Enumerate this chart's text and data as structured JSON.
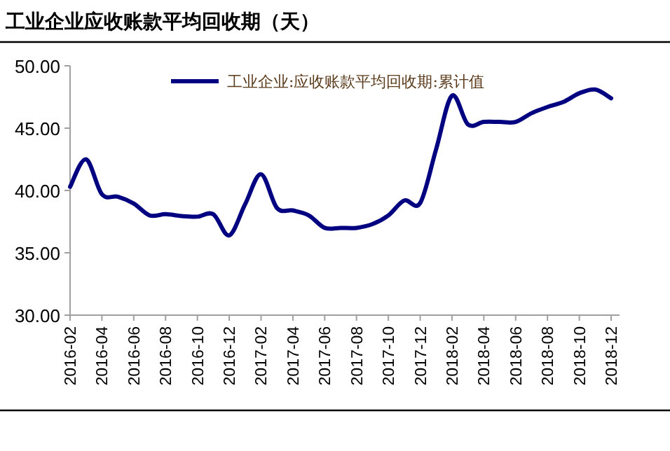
{
  "chart_data": {
    "type": "line",
    "title": "工业企业应收账款平均回收期（天）",
    "categories": [
      "2016-02",
      null,
      "2016-04",
      null,
      "2016-06",
      null,
      "2016-08",
      null,
      "2016-10",
      null,
      "2016-12",
      null,
      "2017-02",
      null,
      "2017-04",
      null,
      "2017-06",
      null,
      "2017-08",
      null,
      "2017-10",
      null,
      "2017-12",
      null,
      "2018-02",
      null,
      "2018-04",
      null,
      "2018-06",
      null,
      "2018-08",
      null,
      "2018-10",
      null,
      "2018-12"
    ],
    "series": [
      {
        "name": "工业企业:应收账款平均回收期:累计值",
        "color": "#000080",
        "values": [
          40.3,
          42.5,
          39.7,
          39.5,
          38.95,
          38.0,
          38.1,
          37.95,
          37.9,
          38.1,
          36.4,
          38.9,
          41.3,
          38.6,
          38.4,
          38.0,
          37.0,
          37.0,
          37.0,
          37.3,
          38.0,
          39.2,
          39.0,
          43.3,
          47.6,
          45.3,
          45.5,
          45.5,
          45.5,
          46.2,
          46.7,
          47.1,
          47.8,
          48.1,
          47.4
        ]
      }
    ],
    "ylim": [
      30,
      50
    ],
    "yticks": [
      {
        "value": 30,
        "label": "30.00"
      },
      {
        "value": 35,
        "label": "35.00"
      },
      {
        "value": 40,
        "label": "40.00"
      },
      {
        "value": 45,
        "label": "45.00"
      },
      {
        "value": 50,
        "label": "50.00"
      }
    ],
    "grid": false,
    "legend": "top",
    "marker": "none",
    "line_style": "solid"
  }
}
